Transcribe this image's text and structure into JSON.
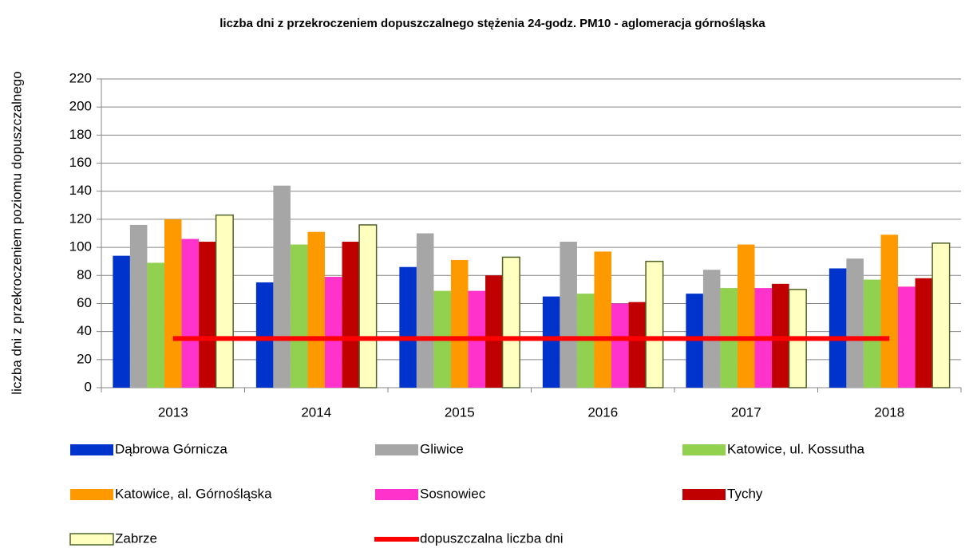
{
  "chart_data": {
    "type": "bar",
    "title": "liczba dni z przekroczeniem dopuszczalnego stężenia 24-godz. PM10 - aglomeracja górnośląska",
    "y_label": "liczba dni z przekroczeniem poziomu dopuszczalnego",
    "categories": [
      "2013",
      "2014",
      "2015",
      "2016",
      "2017",
      "2018"
    ],
    "ylim": [
      0,
      220
    ],
    "yticks": [
      0,
      20,
      40,
      60,
      80,
      100,
      120,
      140,
      160,
      180,
      200,
      220
    ],
    "grid": true,
    "series": [
      {
        "name": "Dąbrowa Górnicza",
        "color": "#0033cc",
        "values": [
          94,
          75,
          86,
          65,
          67,
          85
        ]
      },
      {
        "name": "Gliwice",
        "color": "#a6a6a6",
        "values": [
          116,
          144,
          110,
          104,
          84,
          92
        ]
      },
      {
        "name": "Katowice, ul. Kossutha",
        "color": "#92d050",
        "values": [
          89,
          102,
          69,
          67,
          71,
          77
        ]
      },
      {
        "name": "Katowice, al. Górnośląska",
        "color": "#ff9900",
        "values": [
          120,
          111,
          91,
          97,
          102,
          109
        ]
      },
      {
        "name": "Sosnowiec",
        "color": "#ff33cc",
        "values": [
          106,
          79,
          69,
          60,
          71,
          72
        ]
      },
      {
        "name": "Tychy",
        "color": "#c00000",
        "values": [
          104,
          104,
          80,
          61,
          74,
          78
        ]
      },
      {
        "name": "Zabrze",
        "color": "#ffffc0",
        "edge_color": "#4f6228",
        "values": [
          123,
          116,
          93,
          90,
          70,
          103
        ]
      },
      {
        "name": "dopuszczalna liczba dni",
        "type": "line",
        "color": "#ff0000",
        "values": [
          35,
          35,
          35,
          35,
          35,
          35
        ]
      }
    ]
  }
}
